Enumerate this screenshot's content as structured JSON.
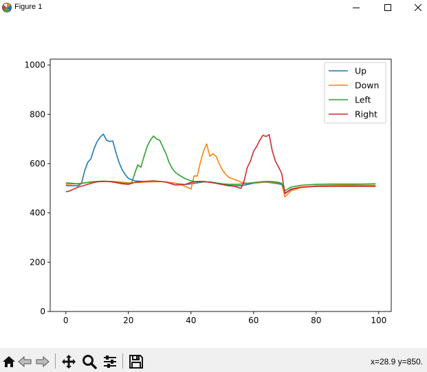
{
  "window": {
    "title": "Figure 1"
  },
  "toolbar": {
    "buttons": [
      {
        "name": "home-icon"
      },
      {
        "name": "back-icon"
      },
      {
        "name": "forward-icon"
      },
      {
        "name": "pan-icon"
      },
      {
        "name": "zoom-icon"
      },
      {
        "name": "configure-subplots-icon"
      },
      {
        "name": "save-icon"
      }
    ],
    "coordinates": "x=28.9 y=850."
  },
  "chart_data": {
    "type": "line",
    "title": "",
    "xlabel": "",
    "ylabel": "",
    "xlim": [
      -5,
      104
    ],
    "ylim": [
      0,
      1024
    ],
    "xticks": [
      0,
      20,
      40,
      60,
      80,
      100
    ],
    "yticks": [
      0,
      200,
      400,
      600,
      800,
      1000
    ],
    "grid": false,
    "legend_position": "top-right",
    "series": [
      {
        "name": "Up",
        "color": "#1f77b4",
        "x": [
          0,
          2,
          4,
          5,
          6,
          7,
          8,
          9,
          10,
          11,
          12,
          13,
          14,
          15,
          16,
          17,
          18,
          19,
          20,
          22,
          25,
          28,
          30,
          32,
          35,
          38,
          40,
          42,
          44,
          46,
          48,
          50,
          52,
          54,
          56,
          58,
          60,
          62,
          64,
          66,
          68,
          69,
          70,
          72,
          75,
          80,
          85,
          90,
          95,
          99
        ],
        "y": [
          511,
          510,
          510,
          520,
          570,
          605,
          620,
          660,
          690,
          708,
          720,
          695,
          690,
          692,
          645,
          605,
          575,
          555,
          540,
          530,
          527,
          528,
          528,
          525,
          520,
          515,
          518,
          522,
          526,
          525,
          520,
          515,
          512,
          510,
          510,
          515,
          520,
          523,
          525,
          522,
          518,
          515,
          478,
          495,
          503,
          508,
          509,
          510,
          510,
          510
        ]
      },
      {
        "name": "Down",
        "color": "#ff7f0e",
        "x": [
          0,
          3,
          6,
          9,
          12,
          15,
          18,
          20,
          22,
          25,
          28,
          30,
          32,
          35,
          37,
          38,
          39,
          40,
          41,
          42,
          43,
          44,
          45,
          46,
          47,
          48,
          49,
          50,
          51,
          52,
          54,
          56,
          58,
          60,
          62,
          65,
          68,
          69,
          70,
          72,
          75,
          80,
          85,
          90,
          95,
          99
        ],
        "y": [
          516,
          518,
          522,
          526,
          528,
          528,
          525,
          522,
          523,
          525,
          526,
          527,
          526,
          520,
          515,
          508,
          503,
          497,
          550,
          550,
          605,
          650,
          680,
          630,
          640,
          630,
          600,
          575,
          558,
          545,
          535,
          525,
          520,
          521,
          524,
          526,
          522,
          520,
          465,
          490,
          502,
          510,
          512,
          513,
          512,
          512
        ]
      },
      {
        "name": "Left",
        "color": "#2ca02c",
        "x": [
          0,
          2,
          4,
          6,
          8,
          10,
          12,
          14,
          16,
          18,
          20,
          21,
          22,
          23,
          24,
          25,
          26,
          27,
          28,
          29,
          30,
          31,
          32,
          33,
          34,
          35,
          36,
          38,
          40,
          42,
          44,
          46,
          48,
          50,
          52,
          55,
          58,
          60,
          62,
          64,
          66,
          68,
          69,
          70,
          72,
          75,
          80,
          85,
          90,
          95,
          99
        ],
        "y": [
          522,
          520,
          517,
          522,
          526,
          528,
          529,
          528,
          524,
          520,
          518,
          520,
          560,
          595,
          585,
          630,
          670,
          695,
          712,
          700,
          695,
          668,
          640,
          605,
          580,
          565,
          555,
          540,
          530,
          526,
          526,
          526,
          522,
          518,
          516,
          516,
          520,
          523,
          526,
          528,
          527,
          524,
          520,
          490,
          505,
          512,
          516,
          517,
          517,
          517,
          518
        ]
      },
      {
        "name": "Right",
        "color": "#d62728",
        "x": [
          0,
          1,
          2,
          4,
          6,
          8,
          10,
          12,
          14,
          16,
          18,
          20,
          22,
          25,
          28,
          30,
          32,
          35,
          38,
          40,
          42,
          44,
          46,
          48,
          50,
          52,
          54,
          55,
          56,
          57,
          58,
          59,
          60,
          61,
          62,
          63,
          64,
          65,
          66,
          67,
          68,
          69,
          70,
          72,
          75,
          80,
          85,
          90,
          95,
          99
        ],
        "y": [
          486,
          488,
          494,
          505,
          512,
          520,
          526,
          528,
          527,
          523,
          518,
          516,
          524,
          528,
          530,
          528,
          525,
          513,
          515,
          524,
          528,
          528,
          524,
          520,
          515,
          510,
          508,
          503,
          500,
          530,
          585,
          610,
          650,
          670,
          695,
          715,
          710,
          718,
          650,
          610,
          585,
          560,
          480,
          497,
          505,
          508,
          508,
          508,
          508,
          508
        ]
      }
    ]
  }
}
